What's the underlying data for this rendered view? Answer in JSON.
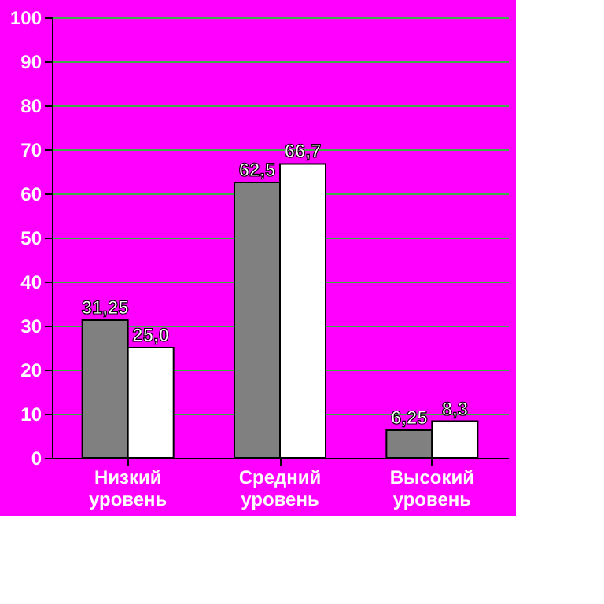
{
  "chart_data": {
    "type": "bar",
    "categories": [
      "Низкий уровень",
      "Средний уровень",
      "Высокий уровень"
    ],
    "series": [
      {
        "color": "#808080",
        "values": [
          31.25,
          62.5,
          6.25
        ],
        "value_labels": [
          "31,25",
          "62,5",
          "6,25"
        ]
      },
      {
        "color": "#ffffff",
        "values": [
          25.0,
          66.7,
          8.3
        ],
        "value_labels": [
          "25,0",
          "66,7",
          "8,3"
        ]
      }
    ],
    "ylim": [
      0,
      100
    ],
    "yticks": [
      0,
      10,
      20,
      30,
      40,
      50,
      60,
      70,
      80,
      90,
      100
    ],
    "grid": "y",
    "legend": false
  }
}
